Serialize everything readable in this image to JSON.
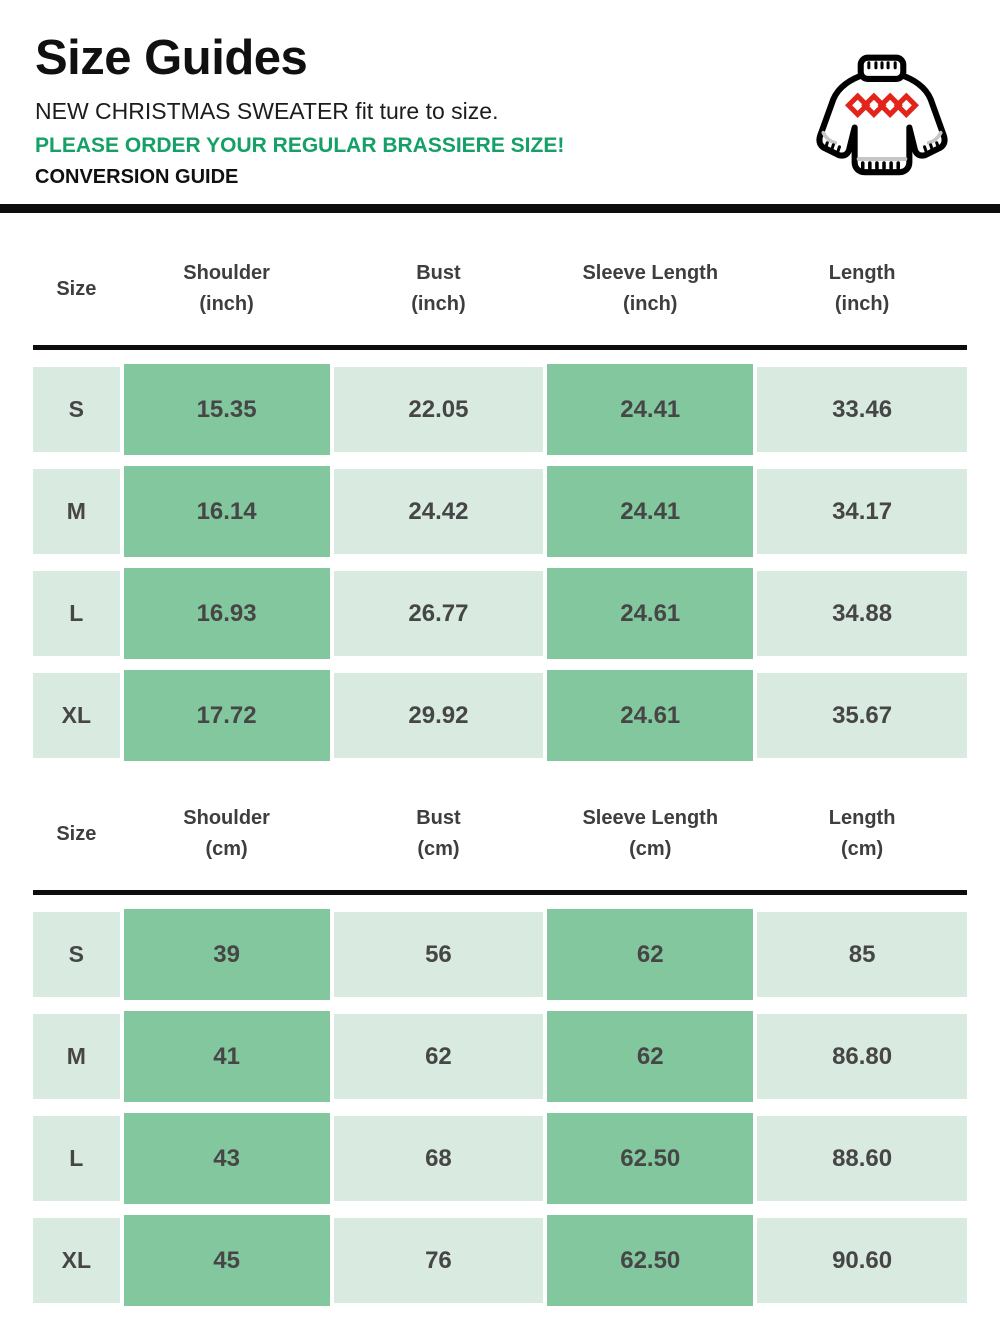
{
  "header": {
    "title": "Size Guides",
    "subtitle": "NEW CHRISTMAS SWEATER fit ture to size.",
    "notice": "PLEASE ORDER YOUR REGULAR BRASSIERE SIZE!",
    "section_label": "CONVERSION GUIDE",
    "icon": "christmas-sweater-icon"
  },
  "colors": {
    "accent_green": "#15A066",
    "cell_dark_green": "#82C79E",
    "cell_light_green": "#D9EAE0",
    "diamond_red": "#E3241B",
    "divider_black": "#0D0D0D",
    "number_text": "#464646",
    "header_text": "#3E3E3E"
  },
  "tables": [
    {
      "unit": "inch",
      "headers": [
        {
          "label": "Size",
          "sub": ""
        },
        {
          "label": "Shoulder",
          "sub": "(inch)"
        },
        {
          "label": "Bust",
          "sub": "(inch)"
        },
        {
          "label": "Sleeve Length",
          "sub": "(inch)"
        },
        {
          "label": "Length",
          "sub": "(inch)"
        }
      ],
      "rows": [
        {
          "size": "S",
          "values": [
            "15.35",
            "22.05",
            "24.41",
            "33.46"
          ]
        },
        {
          "size": "M",
          "values": [
            "16.14",
            "24.42",
            "24.41",
            "34.17"
          ]
        },
        {
          "size": "L",
          "values": [
            "16.93",
            "26.77",
            "24.61",
            "34.88"
          ]
        },
        {
          "size": "XL",
          "values": [
            "17.72",
            "29.92",
            "24.61",
            "35.67"
          ]
        }
      ]
    },
    {
      "unit": "cm",
      "headers": [
        {
          "label": "Size",
          "sub": ""
        },
        {
          "label": "Shoulder",
          "sub": "(cm)"
        },
        {
          "label": "Bust",
          "sub": "(cm)"
        },
        {
          "label": "Sleeve Length",
          "sub": "(cm)"
        },
        {
          "label": "Length",
          "sub": "(cm)"
        }
      ],
      "rows": [
        {
          "size": "S",
          "values": [
            "39",
            "56",
            "62",
            "85"
          ]
        },
        {
          "size": "M",
          "values": [
            "41",
            "62",
            "62",
            "86.80"
          ]
        },
        {
          "size": "L",
          "values": [
            "43",
            "68",
            "62.50",
            "88.60"
          ]
        },
        {
          "size": "XL",
          "values": [
            "45",
            "76",
            "62.50",
            "90.60"
          ]
        }
      ]
    }
  ]
}
